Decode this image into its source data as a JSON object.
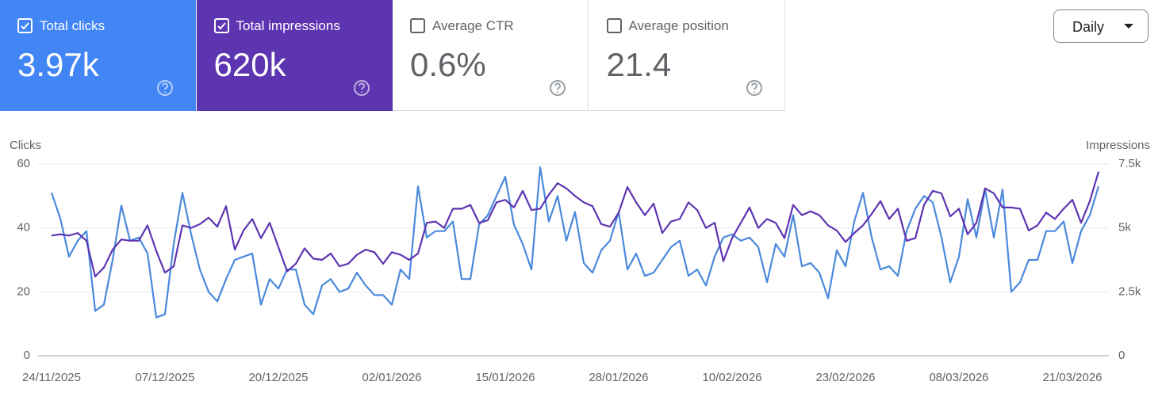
{
  "cards": [
    {
      "label": "Total clicks",
      "value": "3.97k",
      "checked": true,
      "color": "#4285f4"
    },
    {
      "label": "Total impressions",
      "value": "620k",
      "checked": true,
      "color": "#5e35b1"
    },
    {
      "label": "Average CTR",
      "value": "0.6%",
      "checked": false,
      "color": "#ffffff"
    },
    {
      "label": "Average position",
      "value": "21.4",
      "checked": false,
      "color": "#ffffff"
    }
  ],
  "period_selector": "Daily",
  "chart_data": {
    "type": "line",
    "y_label": "Clicks",
    "y2_label": "Impressions",
    "categories": [
      "24/11/2025",
      null,
      null,
      null,
      null,
      null,
      null,
      null,
      null,
      null,
      null,
      null,
      null,
      "07/12/2025",
      null,
      null,
      null,
      null,
      null,
      null,
      null,
      null,
      null,
      null,
      null,
      null,
      "20/12/2025",
      null,
      null,
      null,
      null,
      null,
      null,
      null,
      null,
      null,
      null,
      null,
      null,
      "02/01/2026",
      null,
      null,
      null,
      null,
      null,
      null,
      null,
      null,
      null,
      null,
      null,
      null,
      "15/01/2026",
      null,
      null,
      null,
      null,
      null,
      null,
      null,
      null,
      null,
      null,
      null,
      null,
      "28/01/2026",
      null,
      null,
      null,
      null,
      null,
      null,
      null,
      null,
      null,
      null,
      null,
      null,
      "10/02/2026",
      null,
      null,
      null,
      null,
      null,
      null,
      null,
      null,
      null,
      null,
      null,
      null,
      "23/02/2026",
      null,
      null,
      null,
      null,
      null,
      null,
      null,
      null,
      null,
      null,
      null,
      null,
      "08/03/2026",
      null,
      null,
      null,
      null,
      null,
      null,
      null,
      null,
      null,
      null,
      null,
      null,
      "21/03/2026",
      null,
      null,
      null
    ],
    "series": [
      {
        "name": "Clicks",
        "color": "#4a89dc",
        "values": [
          51,
          43,
          31,
          36,
          39,
          14,
          16,
          30,
          47,
          36,
          37,
          32,
          12,
          13,
          35,
          51,
          38,
          27,
          20,
          17,
          24,
          30,
          31,
          32,
          16,
          24,
          21,
          27,
          27,
          16,
          13,
          22,
          24,
          20,
          21,
          26,
          22,
          19,
          19,
          16,
          27,
          24,
          53,
          37,
          39,
          39,
          42,
          24,
          24,
          41,
          44,
          50,
          56,
          41,
          35,
          27,
          59,
          42,
          50,
          36,
          45,
          29,
          26,
          33,
          36,
          45,
          27,
          32,
          25,
          26,
          30,
          34,
          36,
          25,
          27,
          22,
          31,
          37,
          38,
          36,
          37,
          34,
          23,
          35,
          31,
          44,
          28,
          29,
          26,
          18,
          33,
          28,
          42,
          51,
          37,
          27,
          28,
          25,
          39,
          46,
          50,
          48,
          37,
          23,
          31,
          49,
          37,
          52,
          37,
          52,
          20,
          23,
          30,
          30,
          39,
          39,
          42,
          29,
          39,
          44,
          53
        ]
      },
      {
        "name": "Impressions",
        "color": "#5e35b1",
        "axis": "y2",
        "values": [
          4700,
          4750,
          4700,
          4800,
          4500,
          3100,
          3450,
          4150,
          4550,
          4500,
          4500,
          5100,
          4100,
          3250,
          3500,
          5100,
          5000,
          5150,
          5400,
          5050,
          5850,
          4150,
          4900,
          5350,
          4600,
          5200,
          4250,
          3300,
          3600,
          4200,
          3800,
          3750,
          4000,
          3500,
          3600,
          3950,
          4150,
          4050,
          3600,
          4050,
          3950,
          3750,
          4000,
          5200,
          5250,
          5000,
          5750,
          5750,
          5900,
          5200,
          5300,
          6000,
          6100,
          5800,
          6450,
          5700,
          5750,
          6300,
          6750,
          6550,
          6250,
          6000,
          5850,
          5150,
          5050,
          5600,
          6600,
          6000,
          5500,
          5950,
          4800,
          5250,
          5350,
          6000,
          5700,
          5000,
          5200,
          3700,
          4600,
          5200,
          5800,
          5000,
          5350,
          5200,
          4600,
          5900,
          5500,
          5650,
          5500,
          5100,
          4900,
          4450,
          4800,
          5100,
          5550,
          6050,
          5350,
          5750,
          4500,
          4600,
          5900,
          6450,
          6350,
          5450,
          5750,
          4750,
          5200,
          6550,
          6350,
          5800,
          5800,
          5750,
          4900,
          5100,
          5600,
          5350,
          5750,
          6100,
          5200,
          6050,
          7200
        ]
      }
    ],
    "ylim": [
      0,
      60
    ],
    "yticks": [
      0,
      20,
      40,
      60
    ],
    "y2lim": [
      0,
      7500
    ],
    "y2ticks": [
      0,
      {
        "value": 2500,
        "label": "2.5k"
      },
      {
        "value": 5000,
        "label": "5k"
      },
      {
        "value": 7500,
        "label": "7.5k"
      }
    ],
    "grid": true
  }
}
